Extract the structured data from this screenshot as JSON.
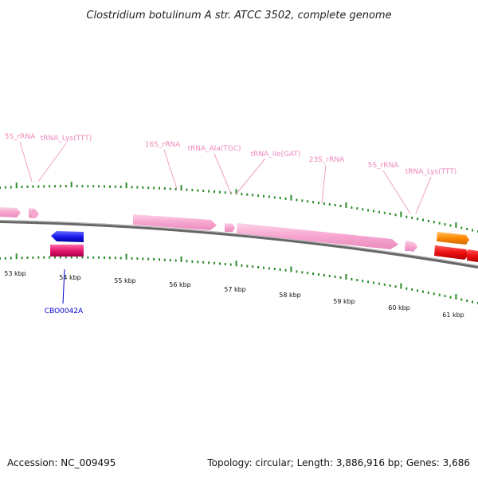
{
  "title": "Clostridium botulinum A str. ATCC 3502, complete genome",
  "footer": {
    "accession": "Accession: NC_009495",
    "summary": "Topology: circular; Length: 3,886,916 bp; Genes: 3,686"
  },
  "feature_labels": [
    {
      "id": "5s-1",
      "text": "5S_rRNA"
    },
    {
      "id": "trna-lys-1",
      "text": "tRNA_Lys(TTT)"
    },
    {
      "id": "16s",
      "text": "16S_rRNA"
    },
    {
      "id": "trna-ala",
      "text": "tRNA_Ala(TGC)"
    },
    {
      "id": "trna-ile",
      "text": "tRNA_Ile(GAT)"
    },
    {
      "id": "23s",
      "text": "23S_rRNA"
    },
    {
      "id": "5s-2",
      "text": "5S_rRNA"
    },
    {
      "id": "trna-lys-2",
      "text": "tRNA_Lys(TTT)"
    }
  ],
  "ruler_labels": [
    "53 kbp",
    "54 kbp",
    "55 kbp",
    "56 kbp",
    "57 kbp",
    "58 kbp",
    "59 kbp",
    "60 kbp",
    "61 kbp"
  ],
  "gene_labels": [
    {
      "id": "cbo0042a",
      "text": "CBO0042A"
    }
  ],
  "colors": {
    "rrna": "#f7a5d0",
    "cds_forward": "#ee1111",
    "cds_orange": "#ff8800",
    "cds_blue": "#1a1aee",
    "cds_magenta": "#e8196e",
    "tick": "#2a8a2a",
    "feature_label": "#ee88bb",
    "backbone": "#777777",
    "gene_label": "#0000cc"
  }
}
